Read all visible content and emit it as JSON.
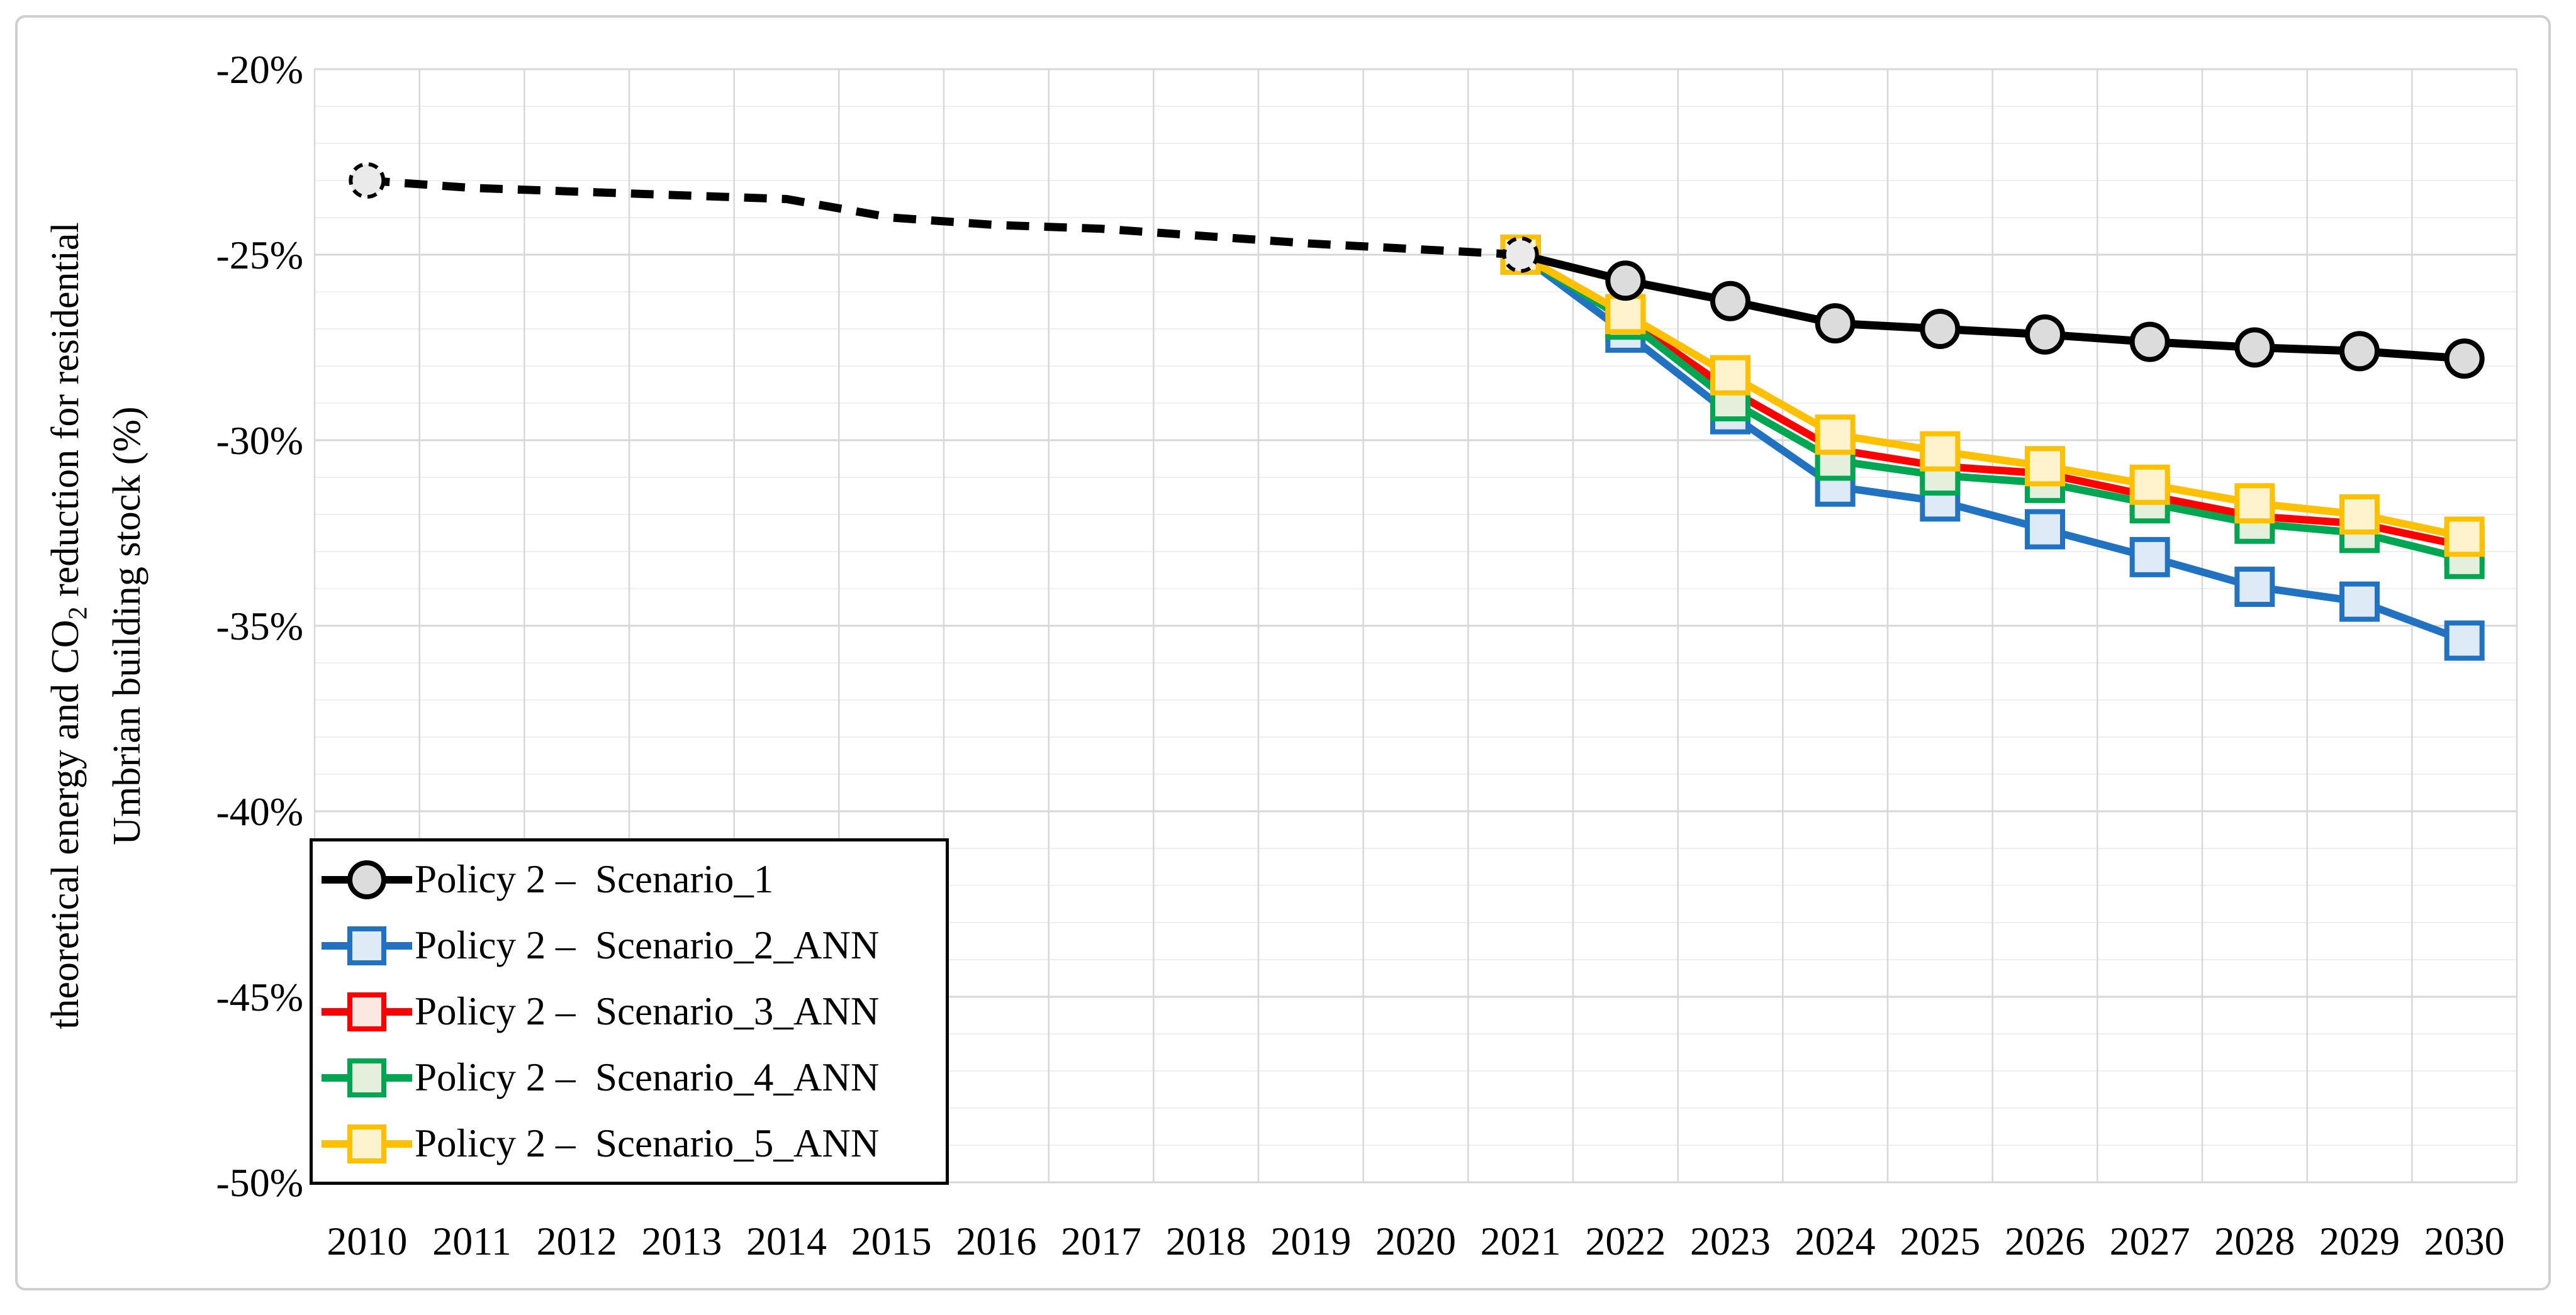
{
  "figure": {
    "border_color": "#CFCFCF",
    "background": "#FFFFFF"
  },
  "axis": {
    "y_tick_labels": [
      "-20%",
      "-25%",
      "-30%",
      "-35%",
      "-40%",
      "-45%",
      "-50%"
    ],
    "x_tick_labels": [
      "2010",
      "2011",
      "2012",
      "2013",
      "2014",
      "2015",
      "2016",
      "2017",
      "2018",
      "2019",
      "2020",
      "2021",
      "2022",
      "2023",
      "2024",
      "2025",
      "2026",
      "2027",
      "2028",
      "2029",
      "2030"
    ],
    "y_title": {
      "pre": "theoretical energy and CO",
      "sub": "2",
      "post": " reduction for residential",
      "line2": "Umbrian building stock (%)"
    },
    "grid_minor_color": "#EFEFEF",
    "grid_major_color": "#D7D7D7",
    "grid_vertical_color": "#D7D7D7"
  },
  "chart_data": {
    "type": "line",
    "title": "",
    "xlabel": "",
    "ylabel": "theoretical energy and CO2 reduction for residential Umbrian building stock (%)",
    "x": [
      2010,
      2011,
      2012,
      2013,
      2014,
      2015,
      2016,
      2017,
      2018,
      2019,
      2020,
      2021,
      2022,
      2023,
      2024,
      2025,
      2026,
      2027,
      2028,
      2029,
      2030
    ],
    "ylim": [
      -50,
      -20
    ],
    "y_major_step": 5,
    "y_minor_step": 1,
    "grid": true,
    "legend_position": "inside-bottom-left",
    "series": [
      {
        "name": "Policy 2 –  Scenario_1",
        "color": "#000000",
        "marker": "circle",
        "marker_fill": "#DCDCDC",
        "dashed_segment": {
          "from": 2010,
          "to": 2021
        },
        "dashed_marker_years": [
          2010,
          2021
        ],
        "marker_years": [
          2010,
          2021,
          2022,
          2023,
          2024,
          2025,
          2026,
          2027,
          2028,
          2029,
          2030
        ],
        "values": [
          -23.0,
          -23.2,
          -23.3,
          -23.4,
          -23.5,
          -24.0,
          -24.2,
          -24.3,
          -24.5,
          -24.7,
          -24.85,
          -25.0,
          -25.7,
          -26.25,
          -26.85,
          -27.0,
          -27.15,
          -27.35,
          -27.5,
          -27.6,
          -27.8
        ]
      },
      {
        "name": "Policy 2 –  Scenario_2_ANN",
        "color": "#2173C1",
        "marker": "square",
        "marker_fill": "#DEEBF7",
        "marker_years": [
          2021,
          2022,
          2023,
          2024,
          2025,
          2026,
          2027,
          2028,
          2029,
          2030
        ],
        "values": [
          null,
          null,
          null,
          null,
          null,
          null,
          null,
          null,
          null,
          null,
          null,
          -25.0,
          -27.1,
          -29.3,
          -31.25,
          -31.65,
          -32.4,
          -33.15,
          -33.95,
          -34.35,
          -35.4
        ]
      },
      {
        "name": "Policy 2 –  Scenario_3_ANN",
        "color": "#FF0000",
        "marker": "square",
        "marker_fill": "#FBE8E0",
        "marker_years": [
          2021,
          2022,
          2023,
          2024,
          2025,
          2026,
          2027,
          2028,
          2029,
          2030
        ],
        "values": [
          null,
          null,
          null,
          null,
          null,
          null,
          null,
          null,
          null,
          null,
          null,
          -25.0,
          -26.7,
          -28.65,
          -30.25,
          -30.7,
          -30.9,
          -31.5,
          -32.05,
          -32.25,
          -32.85
        ]
      },
      {
        "name": "Policy 2 –  Scenario_4_ANN",
        "color": "#00A651",
        "marker": "square",
        "marker_fill": "#E5F0DC",
        "marker_years": [
          2021,
          2022,
          2023,
          2024,
          2025,
          2026,
          2027,
          2028,
          2029,
          2030
        ],
        "values": [
          null,
          null,
          null,
          null,
          null,
          null,
          null,
          null,
          null,
          null,
          null,
          -25.0,
          -26.75,
          -28.95,
          -30.55,
          -30.95,
          -31.15,
          -31.7,
          -32.25,
          -32.5,
          -33.2
        ]
      },
      {
        "name": "Policy 2 –  Scenario_5_ANN",
        "color": "#FFC000",
        "marker": "square",
        "marker_fill": "#FFF3CE",
        "marker_years": [
          2021,
          2022,
          2023,
          2024,
          2025,
          2026,
          2027,
          2028,
          2029,
          2030
        ],
        "values": [
          null,
          null,
          null,
          null,
          null,
          null,
          null,
          null,
          null,
          null,
          null,
          -25.0,
          -26.6,
          -28.25,
          -29.85,
          -30.3,
          -30.7,
          -31.2,
          -31.7,
          -32.0,
          -32.6
        ]
      }
    ],
    "draw_order": [
      1,
      2,
      3,
      4,
      0
    ]
  }
}
